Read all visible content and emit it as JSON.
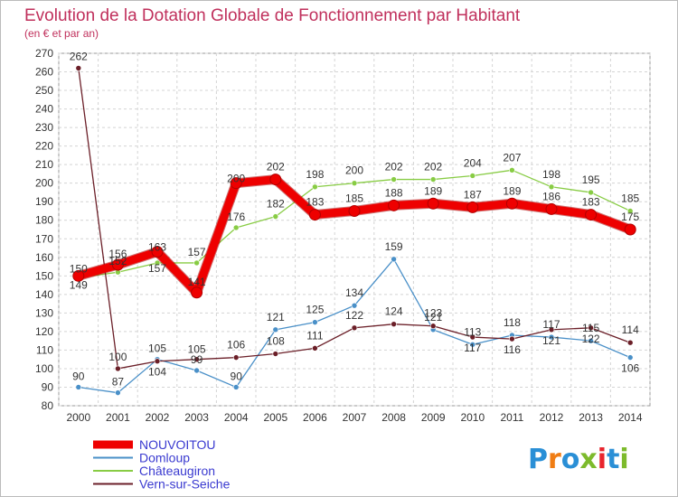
{
  "chart_data": {
    "type": "line",
    "title": "Evolution de la Dotation Globale de Fonctionnement par Habitant",
    "subtitle": "(en € et par an)",
    "xlabel": "",
    "ylabel": "",
    "x": [
      "2000",
      "2001",
      "2002",
      "2003",
      "2004",
      "2005",
      "2006",
      "2007",
      "2008",
      "2009",
      "2010",
      "2011",
      "2012",
      "2013",
      "2014"
    ],
    "ylim": [
      80,
      270
    ],
    "yticks": [
      80,
      90,
      100,
      110,
      120,
      130,
      140,
      150,
      160,
      170,
      180,
      190,
      200,
      210,
      220,
      230,
      240,
      250,
      260,
      270
    ],
    "grid": true,
    "legend_position": "bottom-left",
    "series": [
      {
        "name": "NOUVOITOU",
        "color": "#ee0000",
        "values": [
          150,
          156,
          163,
          141,
          200,
          202,
          183,
          185,
          188,
          189,
          187,
          189,
          186,
          183,
          175
        ]
      },
      {
        "name": "Domloup",
        "color": "#4a90c8",
        "values": [
          90,
          87,
          105,
          99,
          90,
          121,
          125,
          134,
          159,
          121,
          113,
          118,
          117,
          115,
          106
        ]
      },
      {
        "name": "Châteaugiron",
        "color": "#88cc44",
        "values": [
          149,
          152,
          157,
          157,
          176,
          182,
          198,
          200,
          202,
          202,
          204,
          207,
          198,
          195,
          185
        ]
      },
      {
        "name": "Vern-sur-Seiche",
        "color": "#6b1f28",
        "values": [
          262,
          100,
          104,
          105,
          106,
          108,
          111,
          122,
          124,
          123,
          117,
          116,
          121,
          122,
          114
        ]
      }
    ]
  },
  "brand": {
    "name": "Proxiti",
    "letters": [
      "P",
      "r",
      "o",
      "x",
      "i",
      "t",
      "i"
    ],
    "colors": [
      "#2a8fd6",
      "#f07d14",
      "#2a8fd6",
      "#7dbb2c",
      "#e8252d",
      "#2a8fd6",
      "#7dbb2c"
    ]
  }
}
